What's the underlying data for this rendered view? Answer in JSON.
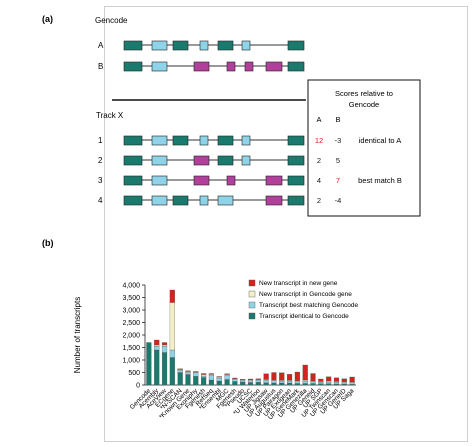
{
  "panel_a": {
    "label": "(a)",
    "gencode_title": "Gencode",
    "track_title": "Track X",
    "gencode_rows": [
      "A",
      "B"
    ],
    "track_rows": [
      "1",
      "2",
      "3",
      "4"
    ],
    "colors": {
      "identical": "#1a7a6e",
      "matching": "#8fd3e8",
      "novel": "#b0409a"
    },
    "scores": {
      "title_line1": "Scores relative to",
      "title_line2": "Gencode",
      "col_a": "A",
      "col_b": "B",
      "rows": [
        {
          "a": "12",
          "b": "-3",
          "note": "identical to A",
          "a_color": "#d0241c",
          "b_color": "#1a1a1a"
        },
        {
          "a": "2",
          "b": "5",
          "note": "",
          "a_color": "#1a1a1a",
          "b_color": "#1a1a1a"
        },
        {
          "a": "4",
          "b": "7",
          "note": "best match B",
          "a_color": "#1a1a1a",
          "b_color": "#d0241c"
        },
        {
          "a": "2",
          "b": "-4",
          "note": "",
          "a_color": "#1a1a1a",
          "b_color": "#1a1a1a"
        }
      ]
    }
  },
  "panel_b": {
    "label": "(b)"
  },
  "chart_data": {
    "type": "bar",
    "stacked": true,
    "ylabel": "Number of transcripts",
    "ylim": [
      0,
      4000
    ],
    "yticks": [
      "0",
      "500",
      "1,000",
      "1,500",
      "2,000",
      "2,500",
      "3,000",
      "3,500",
      "4,000"
    ],
    "ytick_values": [
      0,
      500,
      1000,
      1500,
      2000,
      2500,
      3000,
      3500,
      4000
    ],
    "grid": false,
    "legend_position": "top-right",
    "categories": [
      "Gencode",
      "Acembly",
      "AceView",
      "ECgene",
      "*N-SCAN",
      "*Known Gene",
      "Exoniphy",
      "Fgenesh",
      "RefSeq",
      "*Ensembl",
      "MGC",
      "Fgenesh",
      "*Pseudo",
      "UCSC",
      "*U Waterloo",
      "UP Jigsaw",
      "UP Augustus",
      "UP Pairagon",
      "UP Exogean",
      "UP GeneMark",
      "UP Genezilla",
      "UP Geneid",
      "UP SGP",
      "UP Twinscan",
      "UP Genscan",
      "UP GeneID",
      "UP Saga"
    ],
    "series": [
      {
        "name": "Transcript identical to Gencode",
        "color": "#1a7a6e",
        "values": [
          1700,
          1400,
          1300,
          1100,
          500,
          420,
          350,
          300,
          200,
          160,
          220,
          140,
          120,
          100,
          110,
          90,
          80,
          80,
          80,
          60,
          60,
          60,
          50,
          50,
          40,
          40,
          30
        ]
      },
      {
        "name": "Transcript best matching Gencode",
        "color": "#8fd3e8",
        "values": [
          0,
          150,
          250,
          300,
          80,
          80,
          150,
          60,
          200,
          120,
          160,
          90,
          70,
          80,
          90,
          100,
          90,
          80,
          80,
          80,
          100,
          70,
          60,
          70,
          70,
          60,
          60
        ]
      },
      {
        "name": "New transcript in Gencode gene",
        "color": "#f5efc8",
        "values": [
          0,
          50,
          50,
          1900,
          40,
          40,
          20,
          60,
          30,
          40,
          40,
          20,
          20,
          30,
          20,
          30,
          30,
          30,
          30,
          30,
          40,
          30,
          30,
          40,
          30,
          30,
          30
        ]
      },
      {
        "name": "New transcript in new gene",
        "color": "#d0241c",
        "values": [
          0,
          200,
          100,
          500,
          30,
          30,
          20,
          40,
          30,
          20,
          30,
          30,
          20,
          30,
          30,
          230,
          300,
          300,
          240,
          350,
          600,
          300,
          100,
          170,
          150,
          120,
          200
        ]
      }
    ]
  }
}
